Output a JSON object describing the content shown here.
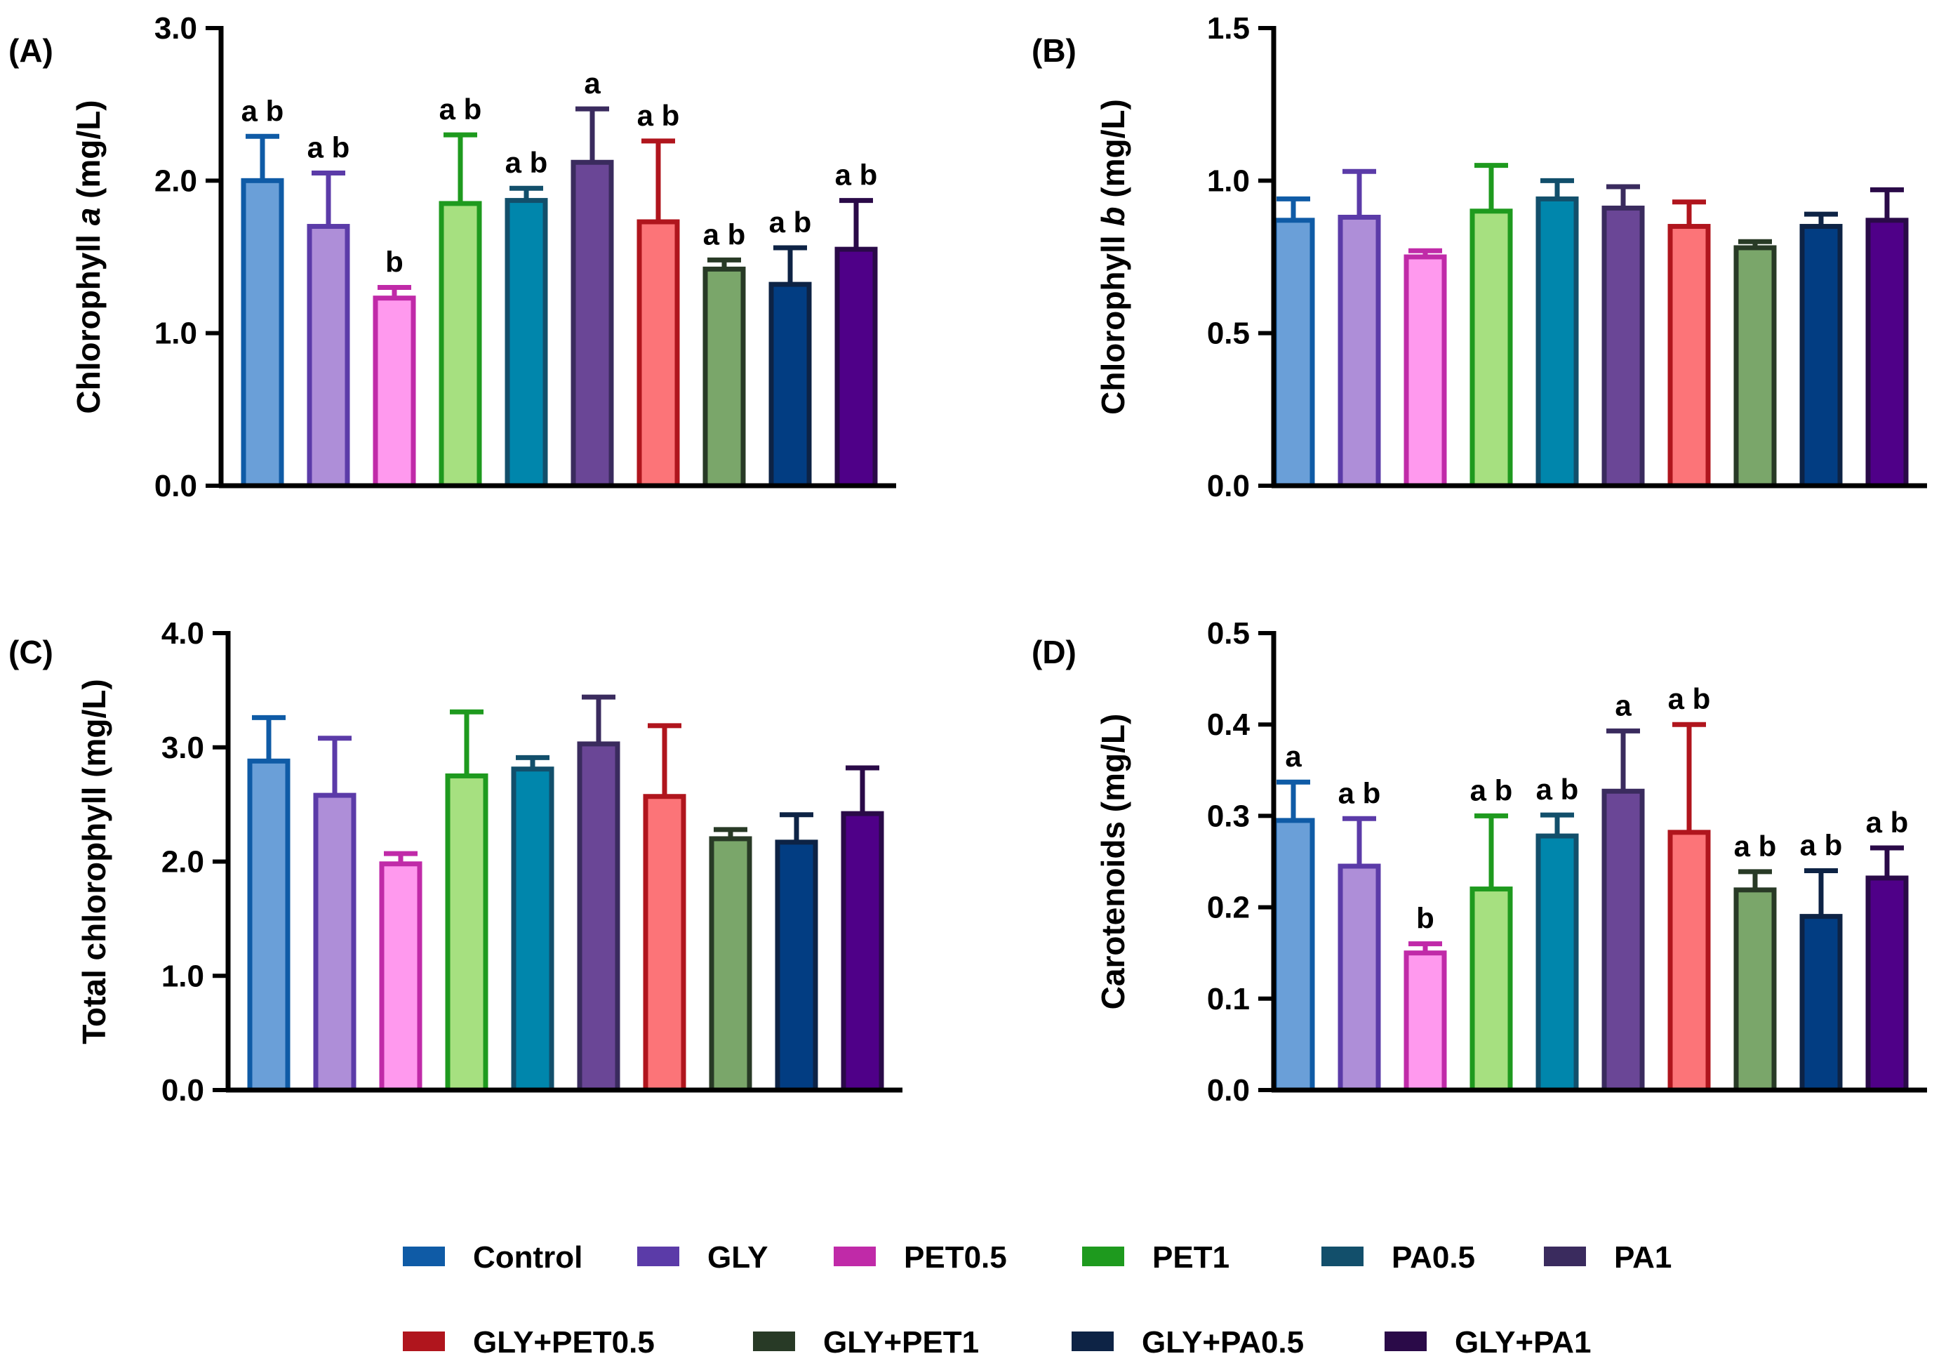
{
  "chart_data": [
    {
      "type": "bar",
      "panel": "(A)",
      "ylabel_parts": [
        "Chlorophyll ",
        "a",
        " (mg/L)"
      ],
      "ylim": [
        0,
        3.0
      ],
      "yticks": [
        "0.0",
        "1.0",
        "2.0",
        "3.0"
      ],
      "categories": [
        "Control",
        "GLY",
        "PET0.5",
        "PET1",
        "PA0.5",
        "PA1",
        "GLY+PET0.5",
        "GLY+PET1",
        "GLY+PA0.5",
        "GLY+PA1"
      ],
      "values": [
        2.0,
        1.7,
        1.23,
        1.85,
        1.87,
        2.12,
        1.73,
        1.42,
        1.32,
        1.55
      ],
      "errors": [
        0.29,
        0.35,
        0.07,
        0.45,
        0.08,
        0.35,
        0.53,
        0.06,
        0.24,
        0.32
      ],
      "labels": [
        "a b",
        "a b",
        "b",
        "a b",
        "a b",
        "a",
        "a b",
        "a b",
        "a b",
        "a b"
      ]
    },
    {
      "type": "bar",
      "panel": "(B)",
      "ylabel_parts": [
        "Chlorophyll ",
        "b",
        " (mg/L)"
      ],
      "ylim": [
        0,
        1.5
      ],
      "yticks": [
        "0.0",
        "0.5",
        "1.0",
        "1.5"
      ],
      "categories": [
        "Control",
        "GLY",
        "PET0.5",
        "PET1",
        "PA0.5",
        "PA1",
        "GLY+PET0.5",
        "GLY+PET1",
        "GLY+PA0.5",
        "GLY+PA1"
      ],
      "values": [
        0.87,
        0.88,
        0.75,
        0.9,
        0.94,
        0.91,
        0.85,
        0.78,
        0.85,
        0.87
      ],
      "errors": [
        0.07,
        0.15,
        0.02,
        0.15,
        0.06,
        0.07,
        0.08,
        0.02,
        0.04,
        0.1
      ],
      "labels": []
    },
    {
      "type": "bar",
      "panel": "(C)",
      "ylabel_parts": [
        "Total chlorophyll (mg/L)"
      ],
      "ylim": [
        0,
        4.0
      ],
      "yticks": [
        "0.0",
        "1.0",
        "2.0",
        "3.0",
        "4.0"
      ],
      "categories": [
        "Control",
        "GLY",
        "PET0.5",
        "PET1",
        "PA0.5",
        "PA1",
        "GLY+PET0.5",
        "GLY+PET1",
        "GLY+PA0.5",
        "GLY+PA1"
      ],
      "values": [
        2.88,
        2.58,
        1.98,
        2.75,
        2.81,
        3.03,
        2.57,
        2.2,
        2.17,
        2.42
      ],
      "errors": [
        0.38,
        0.5,
        0.09,
        0.56,
        0.1,
        0.41,
        0.62,
        0.08,
        0.24,
        0.4
      ],
      "labels": []
    },
    {
      "type": "bar",
      "panel": "(D)",
      "ylabel_parts": [
        "Carotenoids (mg/L)"
      ],
      "ylim": [
        0,
        0.5
      ],
      "yticks": [
        "0.0",
        "0.1",
        "0.2",
        "0.3",
        "0.4",
        "0.5"
      ],
      "categories": [
        "Control",
        "GLY",
        "PET0.5",
        "PET1",
        "PA0.5",
        "PA1",
        "GLY+PET0.5",
        "GLY+PET1",
        "GLY+PA0.5",
        "GLY+PA1"
      ],
      "values": [
        0.295,
        0.245,
        0.15,
        0.22,
        0.278,
        0.327,
        0.282,
        0.219,
        0.19,
        0.232
      ],
      "errors": [
        0.042,
        0.052,
        0.01,
        0.08,
        0.023,
        0.066,
        0.118,
        0.02,
        0.05,
        0.033
      ],
      "labels": [
        "a",
        "a b",
        "b",
        "a b",
        "a b",
        "a",
        "a b",
        "a b",
        "a b",
        "a b"
      ]
    }
  ],
  "legend": [
    {
      "label": "Control",
      "color": "#0f5ba6"
    },
    {
      "label": "GLY",
      "color": "#5b3ba8"
    },
    {
      "label": "PET0.5",
      "color": "#c02aa8"
    },
    {
      "label": "PET1",
      "color": "#1e9a1e"
    },
    {
      "label": "PA0.5",
      "color": "#124f6b"
    },
    {
      "label": "PA1",
      "color": "#3a2b5e"
    },
    {
      "label": "GLY+PET0.5",
      "color": "#b0151d"
    },
    {
      "label": "GLY+PET1",
      "color": "#283a26"
    },
    {
      "label": "GLY+PA0.5",
      "color": "#0d2345"
    },
    {
      "label": "GLY+PA1",
      "color": "#2a0a48"
    }
  ],
  "bar_fills": [
    "#6a9fd8",
    "#ae8ed8",
    "#ff99ee",
    "#a6e080",
    "#0086ac",
    "#6a4696",
    "#fc7478",
    "#7aa66a",
    "#023d82",
    "#4f0088"
  ]
}
